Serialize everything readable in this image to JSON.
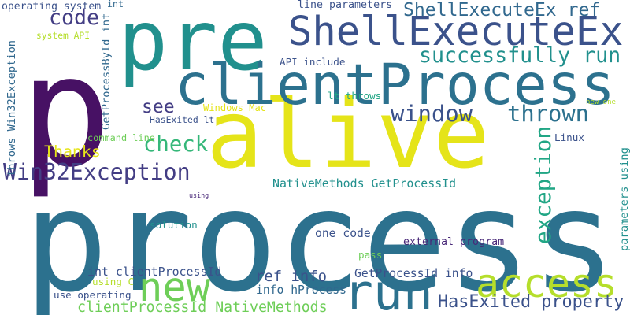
{
  "words": [
    {
      "text": "process",
      "color": "#2c718e"
    },
    {
      "text": "p",
      "color": "#471164"
    },
    {
      "text": "pre",
      "color": "#21908d"
    },
    {
      "text": "alive",
      "color": "#e5e419"
    },
    {
      "text": "clientProcess",
      "color": "#2c718e"
    },
    {
      "text": "ShellExecuteEx",
      "color": "#3b528b"
    },
    {
      "text": "run",
      "color": "#2c718e"
    },
    {
      "text": "access",
      "color": "#b5de2b"
    },
    {
      "text": "new",
      "color": "#6ece58"
    },
    {
      "text": "successfully run",
      "color": "#21908d"
    },
    {
      "text": "Win32Exception",
      "color": "#433d84"
    },
    {
      "text": "window",
      "color": "#3b528b"
    },
    {
      "text": "thrown",
      "color": "#2c718e"
    },
    {
      "text": "exception",
      "color": "#21a685"
    },
    {
      "text": "check",
      "color": "#35b779"
    },
    {
      "text": "code",
      "color": "#433d84"
    },
    {
      "text": "see",
      "color": "#433d84"
    },
    {
      "text": "Thanks",
      "color": "#e5e419"
    },
    {
      "text": "ShellExecuteEx ref",
      "color": "#31688e"
    },
    {
      "text": "HasExited property",
      "color": "#3b528b"
    },
    {
      "text": "clientProcessId NativeMethods",
      "color": "#6ece58"
    },
    {
      "text": "ref info",
      "color": "#3b528b"
    },
    {
      "text": "NativeMethods GetProcessId",
      "color": "#21908d"
    },
    {
      "text": "int clientProcessId",
      "color": "#3b528b"
    },
    {
      "text": "GetProcessId info",
      "color": "#3b528b"
    },
    {
      "text": "info hProcess",
      "color": "#31688e"
    },
    {
      "text": "one code",
      "color": "#3b528b"
    },
    {
      "text": "HasExited lt",
      "color": "#3b528b"
    },
    {
      "text": "operating system",
      "color": "#3b528b"
    },
    {
      "text": "line parameters",
      "color": "#3b528b"
    },
    {
      "text": "lt throws",
      "color": "#21a685"
    },
    {
      "text": "API include",
      "color": "#3b528b"
    },
    {
      "text": "command line",
      "color": "#6ece58"
    },
    {
      "text": "Windows Mac",
      "color": "#e5e419"
    },
    {
      "text": "new one",
      "color": "#b5de2b"
    },
    {
      "text": "Linux",
      "color": "#3b528b"
    },
    {
      "text": "system API",
      "color": "#b5de2b"
    },
    {
      "text": "int",
      "color": "#31688e"
    },
    {
      "text": "solution",
      "color": "#21908d"
    },
    {
      "text": "external program",
      "color": "#482878"
    },
    {
      "text": "pass",
      "color": "#6ece58"
    },
    {
      "text": "using C",
      "color": "#b5de2b"
    },
    {
      "text": "use operating",
      "color": "#3b528b"
    },
    {
      "text": "using",
      "color": "#482878"
    },
    {
      "text": "throws Win32Exception",
      "color": "#31688e"
    },
    {
      "text": "GetProcessById int",
      "color": "#31688e"
    },
    {
      "text": "parameters using",
      "color": "#21908d"
    }
  ]
}
